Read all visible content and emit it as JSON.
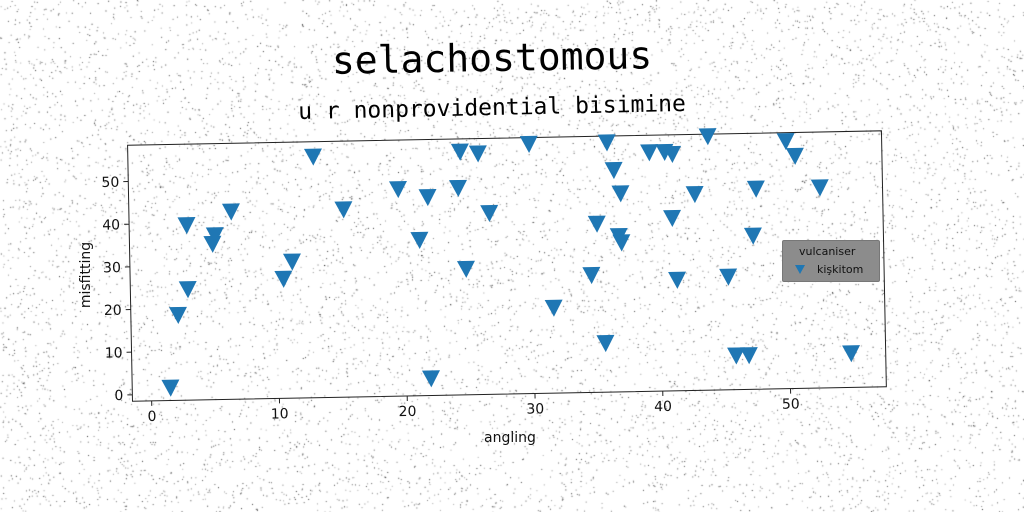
{
  "chart_data": {
    "type": "scatter",
    "title": "selachostomous",
    "subtitle": "u r nonprovidential bisimine",
    "xlabel": "angling",
    "ylabel": "misfitting",
    "xlim": [
      -1.5,
      57.5
    ],
    "ylim": [
      -1.5,
      58.5
    ],
    "xticks": [
      0,
      10,
      20,
      30,
      40,
      50
    ],
    "yticks": [
      0,
      10,
      20,
      30,
      40,
      50
    ],
    "grid": false,
    "legend_title": "vulcaniser",
    "legend_position": "center-right",
    "series": [
      {
        "name": "kişkitom",
        "marker": "triangle-down",
        "color": "#1f77b4",
        "points": [
          [
            1.5,
            1.5
          ],
          [
            2.2,
            18.5
          ],
          [
            3.0,
            24.5
          ],
          [
            3.0,
            39.5
          ],
          [
            5.0,
            35.0
          ],
          [
            5.2,
            37.0
          ],
          [
            6.5,
            42.5
          ],
          [
            10.5,
            26.5
          ],
          [
            11.2,
            30.5
          ],
          [
            13.0,
            55.0
          ],
          [
            15.3,
            42.5
          ],
          [
            19.6,
            47.0
          ],
          [
            21.2,
            35.0
          ],
          [
            21.9,
            45.0
          ],
          [
            21.9,
            2.5
          ],
          [
            24.3,
            47.0
          ],
          [
            24.5,
            55.5
          ],
          [
            24.8,
            28.0
          ],
          [
            25.9,
            55.0
          ],
          [
            26.7,
            41.0
          ],
          [
            29.9,
            57.0
          ],
          [
            31.6,
            18.5
          ],
          [
            34.6,
            26.0
          ],
          [
            35.1,
            38.0
          ],
          [
            35.6,
            10.0
          ],
          [
            36.0,
            57.0
          ],
          [
            36.5,
            50.5
          ],
          [
            36.8,
            35.0
          ],
          [
            37.0,
            33.5
          ],
          [
            37.0,
            45.0
          ],
          [
            39.3,
            54.5
          ],
          [
            40.5,
            54.5
          ],
          [
            41.1,
            54.0
          ],
          [
            41.0,
            39.0
          ],
          [
            41.3,
            24.5
          ],
          [
            42.8,
            44.5
          ],
          [
            43.9,
            58.0
          ],
          [
            45.3,
            25.0
          ],
          [
            45.8,
            6.5
          ],
          [
            46.8,
            6.5
          ],
          [
            47.3,
            34.5
          ],
          [
            47.6,
            45.5
          ],
          [
            50.0,
            56.5
          ],
          [
            50.7,
            53.0
          ],
          [
            52.6,
            45.5
          ],
          [
            54.8,
            6.5
          ]
        ]
      }
    ]
  }
}
